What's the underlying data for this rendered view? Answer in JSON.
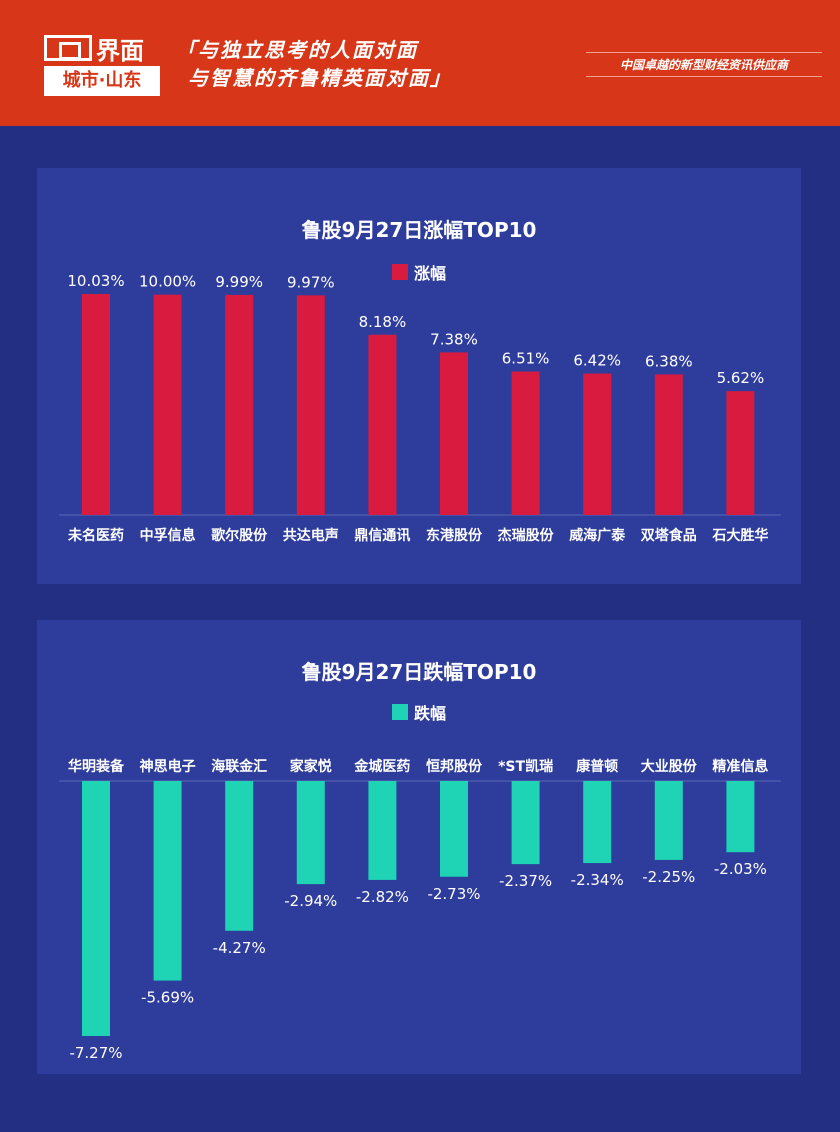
{
  "header": {
    "logo_main": "界面",
    "logo_sub": "城市·山东",
    "slogan_line1": "「与独立思考的人面对面",
    "slogan_line2": "与智慧的齐鲁精英面对面」",
    "tagline": "中国卓越的新型财经资讯供应商"
  },
  "colors": {
    "rise": "#d81b3e",
    "fall": "#1fd3b5"
  },
  "chart_data": [
    {
      "type": "bar",
      "title": "鲁股9月27日涨幅TOP10",
      "legend": "涨幅",
      "categories": [
        "未名医药",
        "中孚信息",
        "歌尔股份",
        "共达电声",
        "鼎信通讯",
        "东港股份",
        "杰瑞股份",
        "威海广泰",
        "双塔食品",
        "石大胜华"
      ],
      "values": [
        10.03,
        10.0,
        9.99,
        9.97,
        8.18,
        7.38,
        6.51,
        6.42,
        6.38,
        5.62
      ],
      "labels": [
        "10.03%",
        "10.00%",
        "9.99%",
        "9.97%",
        "8.18%",
        "7.38%",
        "6.51%",
        "6.42%",
        "6.38%",
        "5.62%"
      ],
      "ylim": [
        0,
        10.03
      ]
    },
    {
      "type": "bar",
      "title": "鲁股9月27日跌幅TOP10",
      "legend": "跌幅",
      "categories": [
        "华明装备",
        "神思电子",
        "海联金汇",
        "家家悦",
        "金城医药",
        "恒邦股份",
        "*ST凯瑞",
        "康普顿",
        "大业股份",
        "精准信息"
      ],
      "values": [
        -7.27,
        -5.69,
        -4.27,
        -2.94,
        -2.82,
        -2.73,
        -2.37,
        -2.34,
        -2.25,
        -2.03
      ],
      "labels": [
        "-7.27%",
        "-5.69%",
        "-4.27%",
        "-2.94%",
        "-2.82%",
        "-2.73%",
        "-2.37%",
        "-2.34%",
        "-2.25%",
        "-2.03%"
      ],
      "ylim": [
        -7.27,
        0
      ]
    }
  ]
}
